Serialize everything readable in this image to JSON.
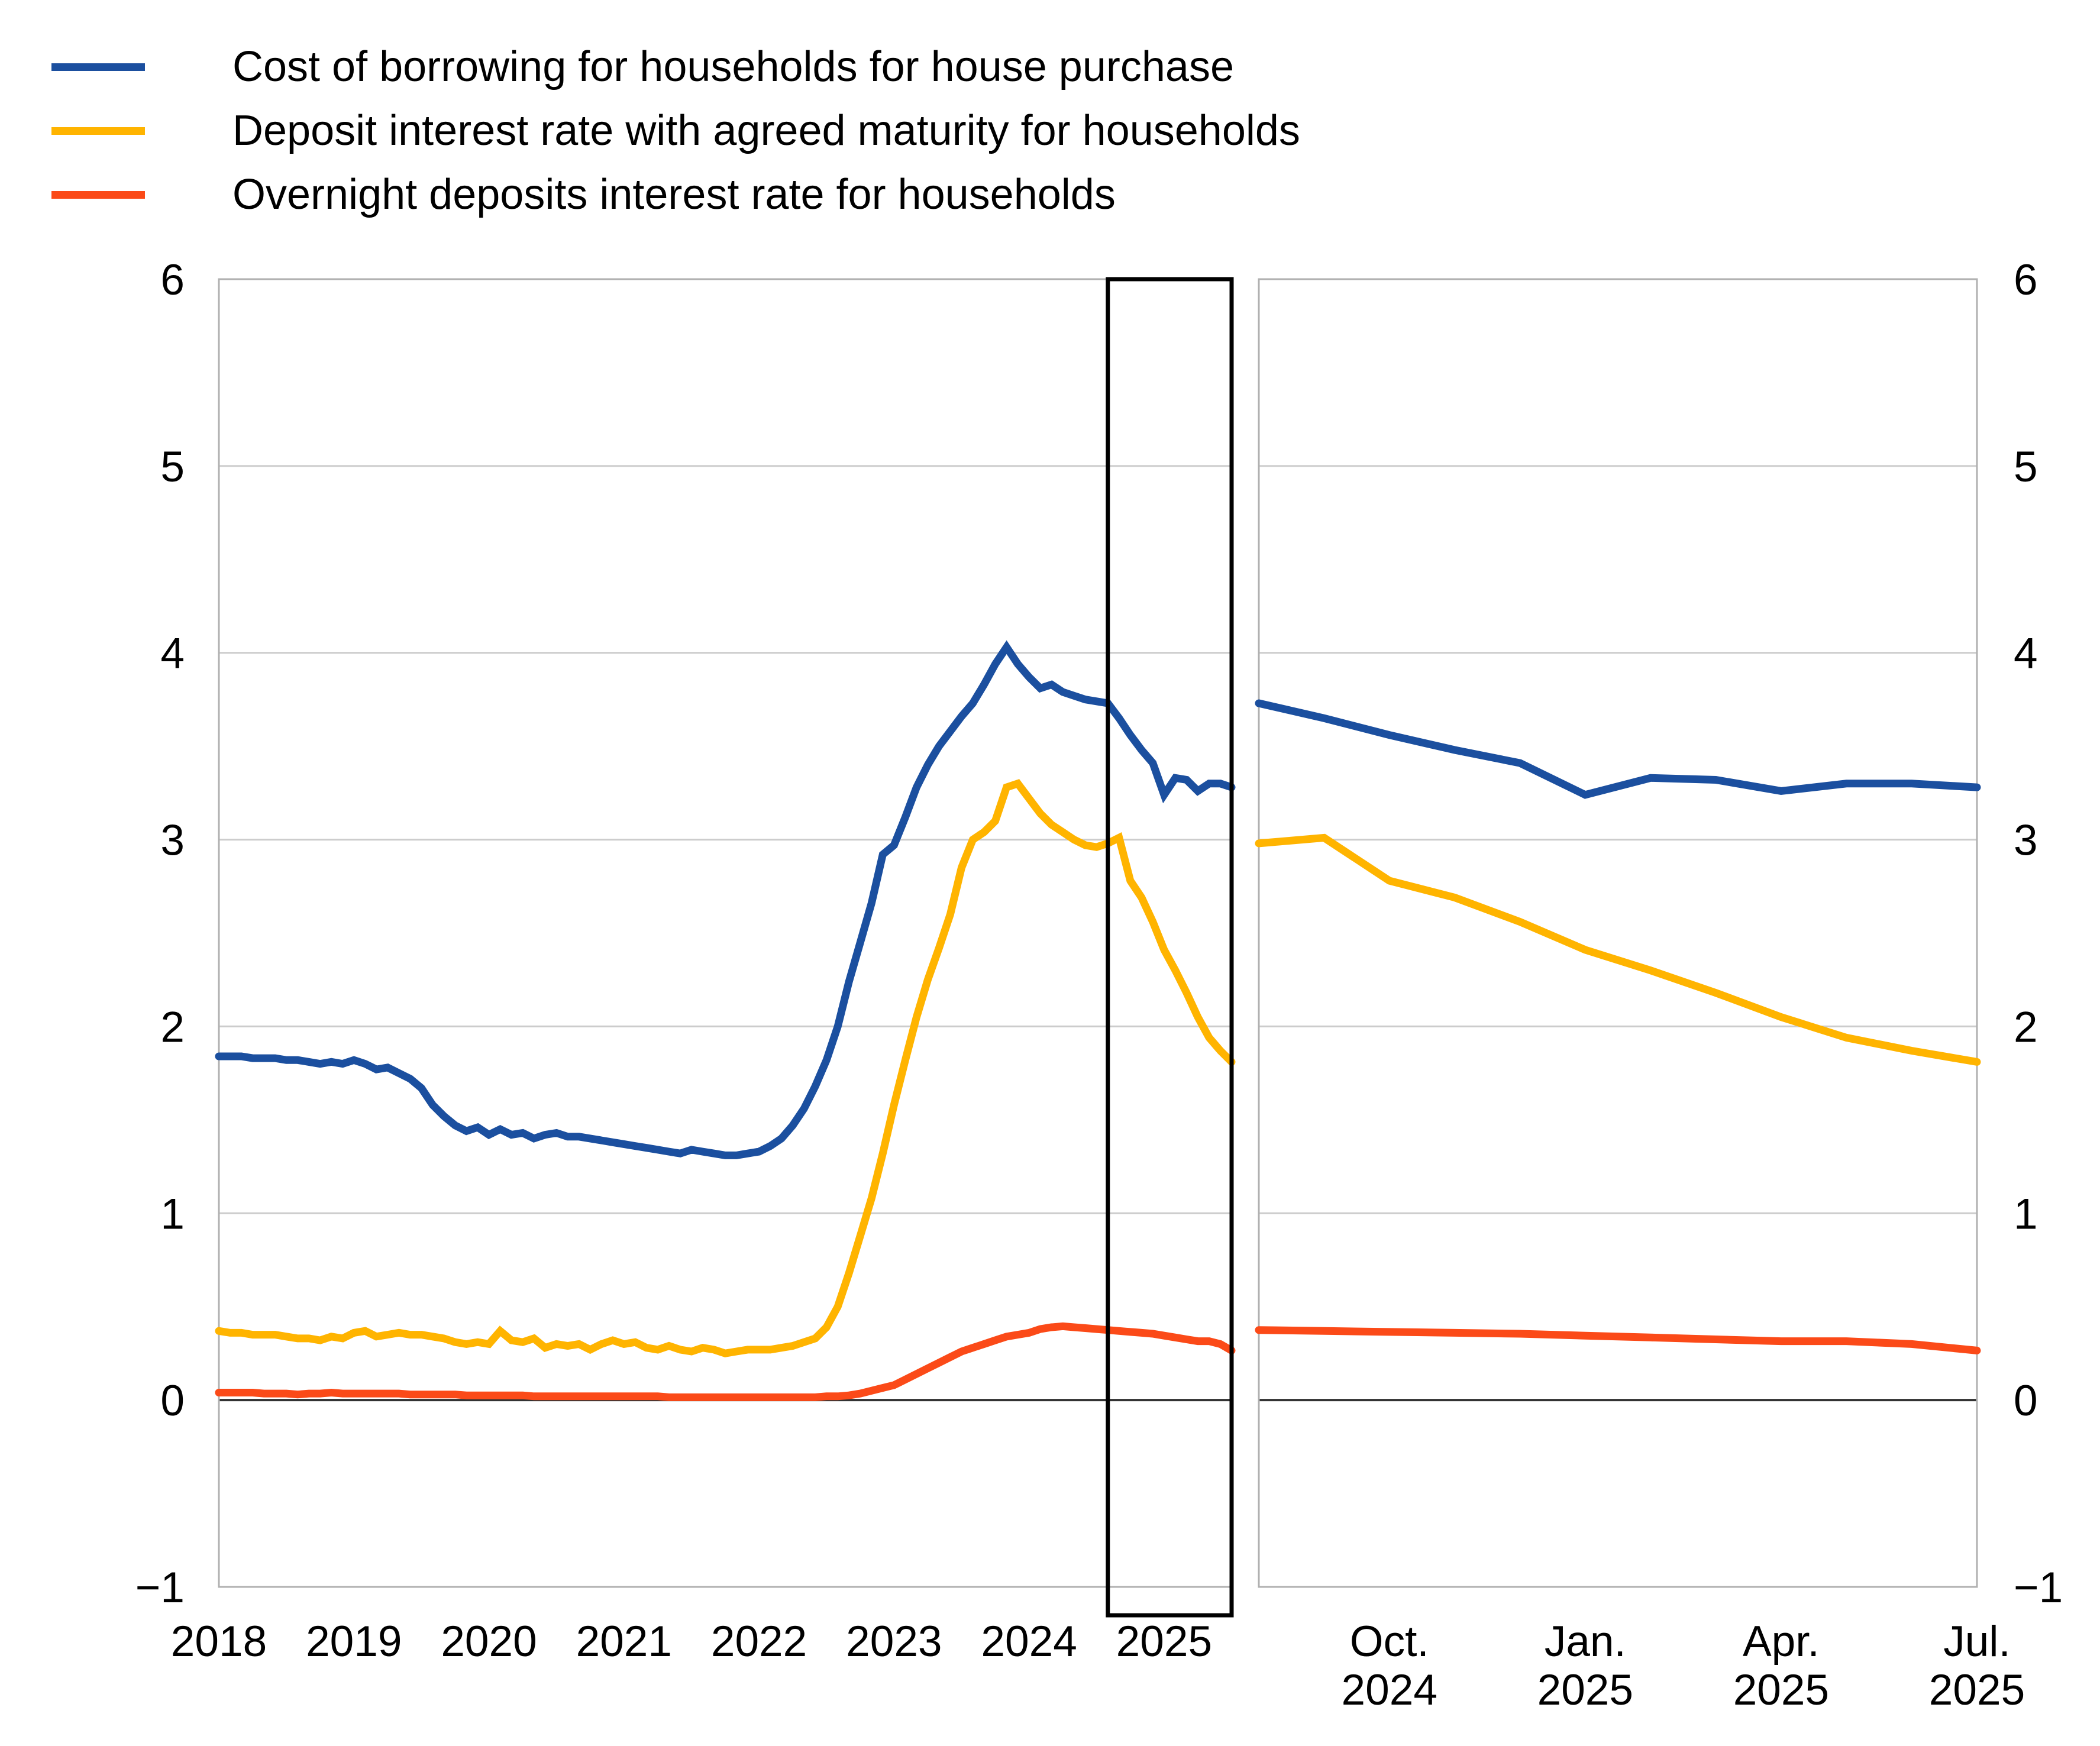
{
  "colors": {
    "blue": "#1b4f9f",
    "yellow": "#ffb400",
    "red": "#fb4a18",
    "grid": "#cccccc",
    "panel_border": "#b0b0b0",
    "zero_line": "#333333",
    "highlight_box": "#000000",
    "text": "#000000",
    "background": "#ffffff"
  },
  "legend": {
    "items": [
      {
        "id": "cost-of-borrowing",
        "label": "Cost of borrowing for households for house purchase",
        "color_key": "blue"
      },
      {
        "id": "deposit-agreed-maturity",
        "label": "Deposit interest rate with agreed maturity for households",
        "color_key": "yellow"
      },
      {
        "id": "overnight-deposits",
        "label": "Overnight deposits interest rate for households",
        "color_key": "red"
      }
    ]
  },
  "chart_data": [
    {
      "id": "full-history-panel",
      "type": "line",
      "x_frequency": "monthly",
      "x_start": "2018-01",
      "x_end": "2025-07",
      "x_tick_labels": [
        "2018",
        "2019",
        "2020",
        "2021",
        "2022",
        "2023",
        "2024",
        "2025"
      ],
      "x_tick_month_index": [
        0,
        12,
        24,
        36,
        48,
        60,
        72,
        84
      ],
      "ylim": [
        -1,
        6
      ],
      "y_ticks": [
        6,
        5,
        4,
        3,
        2,
        1,
        0,
        -1
      ],
      "grid": "horizontal",
      "legend_position": "top-left",
      "highlight_box": {
        "from": "2024-08",
        "to": "2025-07",
        "from_month_index": 79,
        "to_month_index": 90
      },
      "series": [
        {
          "name": "Cost of borrowing for households for house purchase",
          "color_key": "blue",
          "values": [
            1.84,
            1.84,
            1.84,
            1.83,
            1.83,
            1.83,
            1.82,
            1.82,
            1.81,
            1.8,
            1.81,
            1.8,
            1.82,
            1.8,
            1.77,
            1.78,
            1.75,
            1.72,
            1.67,
            1.58,
            1.52,
            1.47,
            1.44,
            1.46,
            1.42,
            1.45,
            1.42,
            1.43,
            1.4,
            1.42,
            1.43,
            1.41,
            1.41,
            1.4,
            1.39,
            1.38,
            1.37,
            1.36,
            1.35,
            1.34,
            1.33,
            1.32,
            1.34,
            1.33,
            1.32,
            1.31,
            1.31,
            1.32,
            1.33,
            1.36,
            1.4,
            1.47,
            1.56,
            1.68,
            1.82,
            2.0,
            2.24,
            2.45,
            2.66,
            2.92,
            2.97,
            3.12,
            3.28,
            3.4,
            3.5,
            3.58,
            3.66,
            3.73,
            3.83,
            3.94,
            4.03,
            3.94,
            3.87,
            3.81,
            3.83,
            3.79,
            3.77,
            3.75,
            3.74,
            3.73,
            3.65,
            3.56,
            3.48,
            3.41,
            3.24,
            3.33,
            3.32,
            3.26,
            3.3,
            3.3,
            3.28
          ]
        },
        {
          "name": "Deposit interest rate with agreed maturity for households",
          "color_key": "yellow",
          "values": [
            0.37,
            0.36,
            0.36,
            0.35,
            0.35,
            0.35,
            0.34,
            0.33,
            0.33,
            0.32,
            0.34,
            0.33,
            0.36,
            0.37,
            0.34,
            0.35,
            0.36,
            0.35,
            0.35,
            0.34,
            0.33,
            0.31,
            0.3,
            0.31,
            0.3,
            0.37,
            0.32,
            0.31,
            0.33,
            0.28,
            0.3,
            0.29,
            0.3,
            0.27,
            0.3,
            0.32,
            0.3,
            0.31,
            0.28,
            0.27,
            0.29,
            0.27,
            0.26,
            0.28,
            0.27,
            0.25,
            0.26,
            0.27,
            0.27,
            0.27,
            0.28,
            0.29,
            0.31,
            0.33,
            0.39,
            0.5,
            0.68,
            0.88,
            1.08,
            1.32,
            1.58,
            1.82,
            2.05,
            2.25,
            2.42,
            2.6,
            2.85,
            3.0,
            3.04,
            3.1,
            3.28,
            3.3,
            3.22,
            3.14,
            3.08,
            3.04,
            3.0,
            2.97,
            2.96,
            2.98,
            3.01,
            2.78,
            2.69,
            2.56,
            2.41,
            2.3,
            2.18,
            2.05,
            1.94,
            1.87,
            1.81
          ]
        },
        {
          "name": "Overnight deposits interest rate for households",
          "color_key": "red",
          "values": [
            0.04,
            0.04,
            0.04,
            0.04,
            0.035,
            0.035,
            0.035,
            0.03,
            0.035,
            0.035,
            0.04,
            0.035,
            0.035,
            0.035,
            0.035,
            0.035,
            0.035,
            0.03,
            0.03,
            0.03,
            0.03,
            0.03,
            0.025,
            0.025,
            0.025,
            0.025,
            0.025,
            0.025,
            0.02,
            0.02,
            0.02,
            0.02,
            0.02,
            0.02,
            0.02,
            0.02,
            0.02,
            0.02,
            0.02,
            0.02,
            0.015,
            0.015,
            0.015,
            0.015,
            0.015,
            0.015,
            0.015,
            0.015,
            0.015,
            0.015,
            0.015,
            0.015,
            0.015,
            0.015,
            0.02,
            0.02,
            0.025,
            0.035,
            0.05,
            0.065,
            0.08,
            0.11,
            0.14,
            0.17,
            0.2,
            0.23,
            0.26,
            0.28,
            0.3,
            0.32,
            0.34,
            0.35,
            0.36,
            0.38,
            0.39,
            0.395,
            0.39,
            0.385,
            0.38,
            0.375,
            0.37,
            0.365,
            0.36,
            0.355,
            0.345,
            0.335,
            0.325,
            0.315,
            0.315,
            0.3,
            0.265
          ]
        }
      ]
    },
    {
      "id": "recent-zoom-panel",
      "type": "line",
      "x_frequency": "monthly",
      "x_start": "2024-08",
      "x_end": "2025-07",
      "x_tick_labels": [
        [
          "Oct.",
          "2024"
        ],
        [
          "Jan.",
          "2025"
        ],
        [
          "Apr.",
          "2025"
        ],
        [
          "Jul.",
          "2025"
        ]
      ],
      "x_tick_month_index": [
        2,
        5,
        8,
        11
      ],
      "ylim": [
        -1,
        6
      ],
      "y_ticks": [
        6,
        5,
        4,
        3,
        2,
        1,
        0,
        -1
      ],
      "grid": "horizontal",
      "series": [
        {
          "name": "Cost of borrowing for households for house purchase",
          "color_key": "blue",
          "values": [
            3.73,
            3.65,
            3.56,
            3.48,
            3.41,
            3.24,
            3.33,
            3.32,
            3.26,
            3.3,
            3.3,
            3.28
          ]
        },
        {
          "name": "Deposit interest rate with agreed maturity for households",
          "color_key": "yellow",
          "values": [
            2.98,
            3.01,
            2.78,
            2.69,
            2.56,
            2.41,
            2.3,
            2.18,
            2.05,
            1.94,
            1.87,
            1.81
          ]
        },
        {
          "name": "Overnight deposits interest rate for households",
          "color_key": "red",
          "values": [
            0.375,
            0.37,
            0.365,
            0.36,
            0.355,
            0.345,
            0.335,
            0.325,
            0.315,
            0.315,
            0.3,
            0.265
          ]
        }
      ]
    }
  ]
}
